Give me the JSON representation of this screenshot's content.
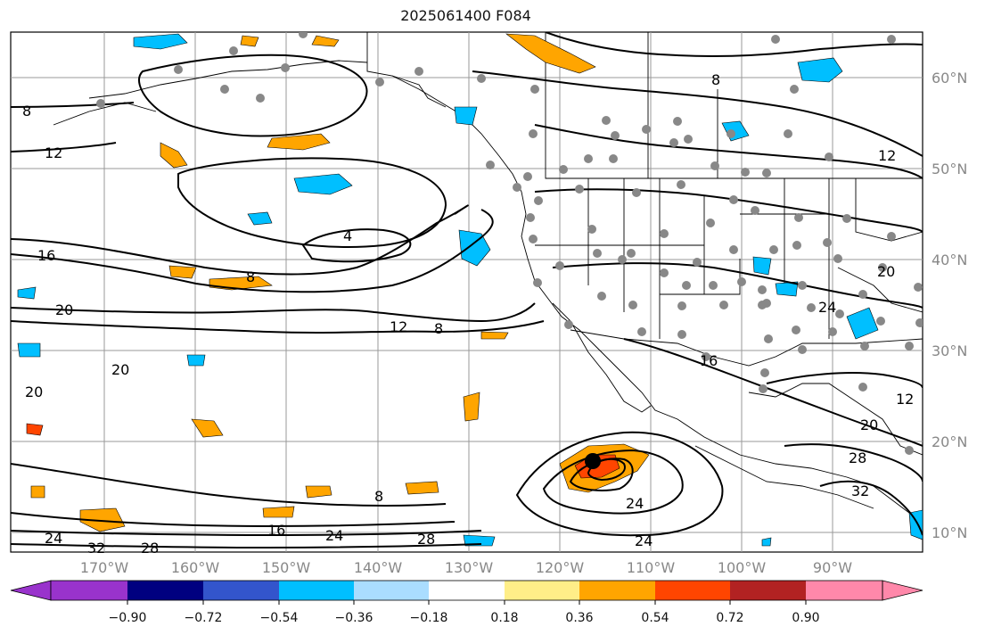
{
  "title": "2025061400 F084",
  "map": {
    "lat_labels": [
      "60°N",
      "50°N",
      "40°N",
      "30°N",
      "20°N",
      "10°N"
    ],
    "lon_labels": [
      "170°W",
      "160°W",
      "150°W",
      "140°W",
      "130°W",
      "120°W",
      "110°W",
      "100°W",
      "90°W"
    ],
    "contour_labels": [
      "8",
      "8",
      "12",
      "12",
      "16",
      "20",
      "20",
      "20",
      "4",
      "8",
      "12",
      "8",
      "24",
      "24",
      "24",
      "16",
      "24",
      "28",
      "32",
      "28",
      "8",
      "28",
      "32",
      "20",
      "24",
      "20",
      "12",
      "16"
    ],
    "colors": {
      "purple": "#9933cc",
      "navy": "#000080",
      "royal_blue": "#3355cc",
      "deep_sky": "#00bfff",
      "light_blue": "#aaddff",
      "white": "#ffffff",
      "khaki": "#ffee88",
      "orange": "#ffa500",
      "orange_red": "#ff4500",
      "firebrick": "#b22222",
      "pink": "#ff88aa",
      "station_dot": "#888888"
    }
  },
  "colorbar": {
    "colors": [
      "#9933cc",
      "#000080",
      "#3355cc",
      "#00bfff",
      "#aaddff",
      "#ffffff",
      "#ffee88",
      "#ffa500",
      "#ff4500",
      "#b22222",
      "#ff88aa"
    ],
    "tick_labels": [
      "−0.90",
      "−0.72",
      "−0.54",
      "−0.36",
      "−0.18",
      "0.18",
      "0.36",
      "0.54",
      "0.72",
      "0.90"
    ]
  }
}
